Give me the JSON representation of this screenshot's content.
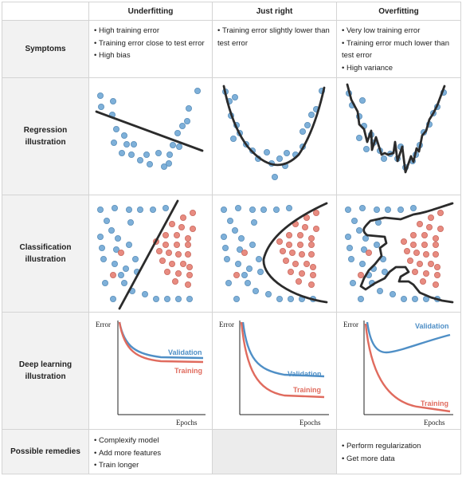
{
  "columns": {
    "corner": "",
    "underfitting": "Underfitting",
    "just_right": "Just right",
    "overfitting": "Overfitting"
  },
  "rows": {
    "symptoms": {
      "label": "Symptoms",
      "underfitting": [
        "High training error",
        "Training error close to test error",
        "High bias"
      ],
      "just_right": [
        "Training error slightly lower than test error"
      ],
      "overfitting": [
        "Very low training error",
        "Training error much lower than test error",
        "High variance"
      ]
    },
    "regression": {
      "label_line1": "Regression",
      "label_line2": "illustration"
    },
    "classification": {
      "label_line1": "Classification",
      "label_line2": "illustration"
    },
    "deep_learning": {
      "label_line1": "Deep learning",
      "label_line2": "illustration",
      "y_axis_label": "Error",
      "x_axis_label": "Epochs",
      "validation_label": "Validation",
      "training_label": "Training"
    },
    "remedies": {
      "label": "Possible remedies",
      "underfitting": [
        "Complexify model",
        "Add more features",
        "Train longer"
      ],
      "just_right": [],
      "overfitting": [
        "Perform regularization",
        "Get more data"
      ]
    }
  },
  "colors": {
    "blue_point": "#7eb0d9",
    "red_point": "#e88b80",
    "curve": "#2b2b2b",
    "validation": "#4f8fc6",
    "training": "#e06b5e",
    "header_bg": "#f2f2f2",
    "empty_cell_bg": "#ececec"
  }
}
